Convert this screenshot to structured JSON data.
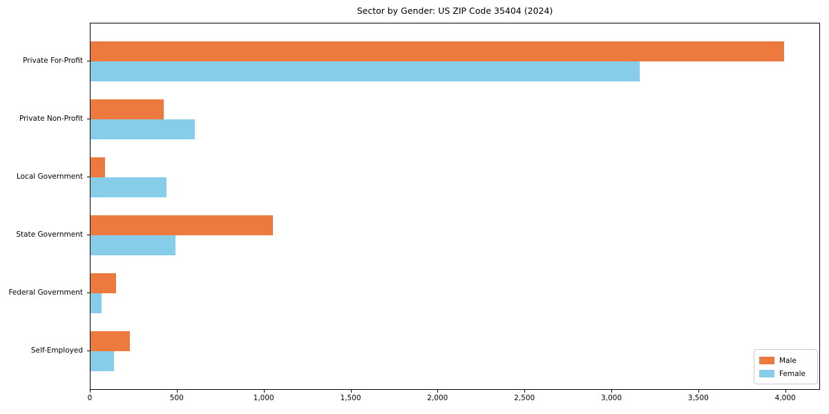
{
  "chart_data": {
    "type": "bar",
    "orientation": "horizontal",
    "title": "Sector by Gender: US ZIP Code 35404 (2024)",
    "categories": [
      "Private For-Profit",
      "Private Non-Profit",
      "Local Government",
      "State Government",
      "Federal Government",
      "Self-Employed"
    ],
    "series": [
      {
        "name": "Male",
        "color": "#ec7a3e",
        "values": [
          3990,
          420,
          85,
          1050,
          145,
          225
        ]
      },
      {
        "name": "Female",
        "color": "#85cde8",
        "values": [
          3160,
          600,
          435,
          490,
          65,
          135
        ]
      }
    ],
    "xlabel": "",
    "ylabel": "",
    "xlim": [
      0,
      4200
    ],
    "xticks": [
      0,
      500,
      1000,
      1500,
      2000,
      2500,
      3000,
      3500,
      4000
    ],
    "xtick_labels": [
      "0",
      "500",
      "1,000",
      "1,500",
      "2,000",
      "2,500",
      "3,000",
      "3,500",
      "4,000"
    ],
    "grid": false,
    "legend": {
      "position": "lower right"
    },
    "colors": {
      "axis": "#000000",
      "legend_border": "#c8c8c8",
      "background": "#ffffff"
    }
  }
}
